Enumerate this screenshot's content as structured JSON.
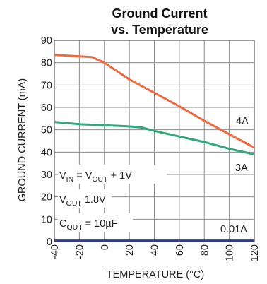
{
  "chart_data": {
    "type": "line",
    "title_line1": "Ground Current",
    "title_line2": "vs. Temperature",
    "xlabel": "TEMPERATURE (°C)",
    "ylabel": "GROUND CURRENT (mA)",
    "xlim": [
      -40,
      120
    ],
    "ylim": [
      0,
      90
    ],
    "xticks": [
      -40,
      -20,
      0,
      20,
      40,
      60,
      80,
      100,
      120
    ],
    "yticks": [
      0,
      10,
      20,
      30,
      40,
      50,
      60,
      70,
      80,
      90
    ],
    "xtick_labels": [
      "-40",
      "-20",
      "0",
      "20",
      "40",
      "60",
      "80",
      "100",
      "120"
    ],
    "ytick_labels": [
      "0",
      "10",
      "20",
      "30",
      "40",
      "50",
      "60",
      "70",
      "80",
      "90"
    ],
    "grid": true,
    "conditions": {
      "vin": {
        "main": "V",
        "sub": "IN",
        "rest": " = V",
        "sub2": "OUT",
        "tail": " + 1V"
      },
      "vout": {
        "main": "V",
        "sub": "OUT",
        "tail": " 1.8V"
      },
      "cout": {
        "main": "C",
        "sub": "OUT",
        "tail": " = 10µF"
      }
    },
    "series": [
      {
        "name": "4A",
        "color": "#f06a3f",
        "x": [
          -40,
          -10,
          0,
          20,
          40,
          60,
          80,
          100,
          120
        ],
        "y": [
          83.5,
          82.5,
          80,
          72.5,
          66.5,
          60.5,
          54,
          48,
          42
        ]
      },
      {
        "name": "3A",
        "color": "#2fa87a",
        "x": [
          -40,
          -20,
          0,
          20,
          30,
          40,
          60,
          80,
          100,
          120
        ],
        "y": [
          53.5,
          52.5,
          52,
          51.5,
          51,
          49.5,
          47,
          44.5,
          41.5,
          39
        ]
      },
      {
        "name": "0.01A",
        "color": "#2a3d9a",
        "x": [
          -40,
          120
        ],
        "y": [
          0.4,
          0.4
        ]
      }
    ]
  }
}
